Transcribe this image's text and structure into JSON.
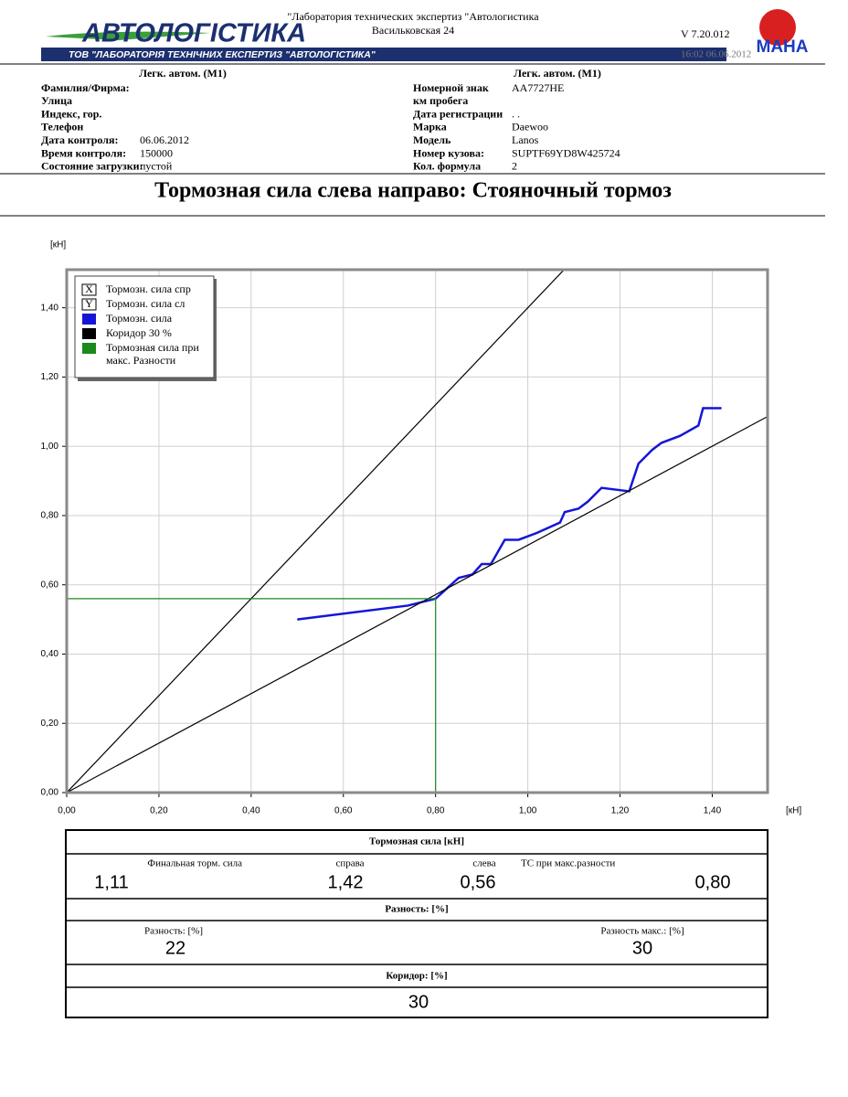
{
  "header": {
    "lab": "\"Лаборатория технических экспертиз \"Автологистика",
    "address": "Васильковская 24",
    "logo": "АВТОЛОГІСТИКА",
    "banner": "ТОВ \"ЛАБОРАТОРІЯ ТЕХНІЧНИХ ЕКСПЕРТИЗ \"АВТОЛОГІСТИКА\"",
    "version": "V 7.20.012",
    "timestamp": "16:02  06.06.2012",
    "brand": "MAHA"
  },
  "info": {
    "left": {
      "heading": "Легк. автом. (M1)",
      "rows": [
        {
          "label": "Фамилия/Фирма:"
        },
        {
          "label": "Улица"
        },
        {
          "label": "Индекс, гор."
        },
        {
          "label": "Телефон"
        },
        {
          "label": "Дата контроля:",
          "value": "06.06.2012"
        },
        {
          "label": "Время контроля:",
          "value": "150000"
        },
        {
          "label": "Состояние загрузки:",
          "value": "пустой"
        }
      ]
    },
    "right": {
      "heading": "Легк. автом. (M1)",
      "rows": [
        {
          "label": "Номерной знак",
          "value": "AA7727HE"
        },
        {
          "label": "км пробега"
        },
        {
          "label": "Дата регистрации",
          "value": " .  ."
        },
        {
          "label": "Марка",
          "value": "Daewoo"
        },
        {
          "label": "Модель",
          "value": "Lanos"
        },
        {
          "label": "Номер кузова:",
          "value": "SUPTF69YD8W425724"
        },
        {
          "label": "Кол. формула",
          "value": "2"
        }
      ]
    }
  },
  "title": "Тормозная сила слева направо: Стояночный тормоз",
  "chart_data": {
    "type": "line",
    "y_unit": "[кН]",
    "x_unit": "[кН]",
    "xlim": [
      0,
      1.52
    ],
    "ylim": [
      0,
      1.51
    ],
    "xticks": [
      {
        "value": 0,
        "label": "0,00"
      },
      {
        "value": 0.2,
        "label": "0,20"
      },
      {
        "value": 0.4,
        "label": "0,40"
      },
      {
        "value": 0.6,
        "label": "0,60"
      },
      {
        "value": 0.8,
        "label": "0,80"
      },
      {
        "value": 1.0,
        "label": "1,00"
      },
      {
        "value": 1.2,
        "label": "1,20"
      },
      {
        "value": 1.4,
        "label": "1,40"
      }
    ],
    "yticks": [
      {
        "value": 0,
        "label": "0,00"
      },
      {
        "value": 0.2,
        "label": "0,20"
      },
      {
        "value": 0.4,
        "label": "0,40"
      },
      {
        "value": 0.6,
        "label": "0,60"
      },
      {
        "value": 0.8,
        "label": "0,80"
      },
      {
        "value": 1.0,
        "label": "1,00"
      },
      {
        "value": 1.2,
        "label": "1,20"
      },
      {
        "value": 1.4,
        "label": "1,40"
      }
    ],
    "grid": true,
    "axis_legend": [
      {
        "symbol": "X",
        "label": "Тормозн. сила спр"
      },
      {
        "symbol": "Y",
        "label": "Тормозн. сила сл"
      }
    ],
    "series": [
      {
        "name": "Тормозн. сила",
        "color": "#1515d8",
        "x": [
          0.5,
          0.74,
          0.8,
          0.85,
          0.88,
          0.9,
          0.92,
          0.95,
          0.98,
          1.0,
          1.02,
          1.07,
          1.08,
          1.11,
          1.13,
          1.16,
          1.22,
          1.24,
          1.27,
          1.29,
          1.33,
          1.37,
          1.38,
          1.42
        ],
        "values": [
          0.5,
          0.54,
          0.56,
          0.62,
          0.63,
          0.66,
          0.66,
          0.73,
          0.73,
          0.74,
          0.75,
          0.78,
          0.81,
          0.82,
          0.84,
          0.88,
          0.87,
          0.95,
          0.99,
          1.01,
          1.03,
          1.06,
          1.11,
          1.11
        ]
      },
      {
        "name": "Коридор  30 %",
        "color": "#000000",
        "x": [
          0,
          1.09
        ],
        "values": [
          0,
          1.526
        ]
      },
      {
        "name": "Коридор  30 %",
        "color": "#000000",
        "x": [
          0,
          1.52
        ],
        "values": [
          0,
          1.086
        ]
      },
      {
        "name": "Тормозная сила при макс. Разности",
        "color": "#1a8a1a",
        "x": [
          0,
          0.8,
          0.8
        ],
        "values": [
          0.56,
          0.56,
          0
        ]
      }
    ]
  },
  "results": {
    "force": {
      "title": "Тормозная сила [кН]",
      "items": [
        {
          "label": "Финальная торм. сила",
          "value": "1,11"
        },
        {
          "label": "справа",
          "value": "1,42"
        },
        {
          "label": "слева",
          "value": "0,56"
        },
        {
          "label": "ТС при макс.разности",
          "value": "0,80"
        }
      ]
    },
    "difference": {
      "title": "Разность: [%]",
      "items": [
        {
          "label": "Разность: [%]",
          "value": "22"
        },
        {
          "label": "Разность макс.: [%]",
          "value": "30"
        }
      ]
    },
    "corridor": {
      "title": "Коридор: [%]",
      "value": "30"
    }
  }
}
